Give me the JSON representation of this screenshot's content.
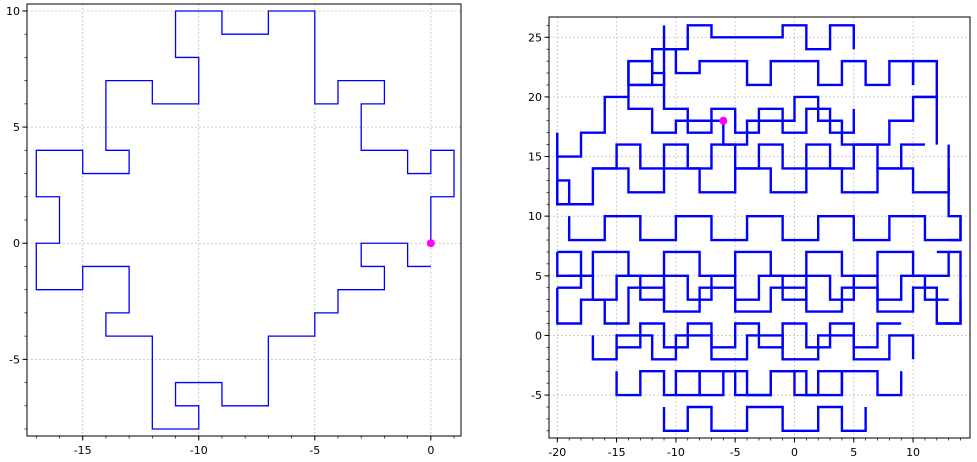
{
  "chart_data": [
    {
      "type": "line",
      "title": "",
      "xlabel": "",
      "ylabel": "",
      "xlim": [
        -17.4,
        1.3
      ],
      "ylim": [
        -8.3,
        10.3
      ],
      "grid": true,
      "xticks": [
        -15,
        -10,
        -5,
        0
      ],
      "yticks": [
        -5,
        0,
        5,
        10
      ],
      "xtick_labels": [
        "-15",
        "-10",
        "-5",
        "0"
      ],
      "ytick_labels": [
        "-5",
        "0",
        "5",
        "10"
      ],
      "line_color": "#0000ff",
      "marker_color": "#ff00ff",
      "series": [
        {
          "x": [
            0,
            0,
            1,
            1,
            0,
            0,
            -1,
            -1,
            -3,
            -3,
            -2,
            -2,
            -4,
            -4,
            -5,
            -5,
            -7,
            -7,
            -9,
            -9,
            -11,
            -11,
            -10,
            -10,
            -12,
            -12,
            -14,
            -14,
            -13,
            -13,
            -15,
            -15,
            -17,
            -17,
            -16,
            -16,
            -17,
            -17,
            -15,
            -15,
            -13,
            -13,
            -14,
            -14,
            -12,
            -12,
            -10,
            -10,
            -11,
            -11,
            -9,
            -9,
            -7,
            -7,
            -5,
            -5,
            -4,
            -4,
            -2,
            -2,
            -3,
            -3,
            -1,
            -1,
            0
          ],
          "y": [
            0,
            2,
            2,
            4,
            4,
            3,
            3,
            4,
            4,
            6,
            6,
            7,
            7,
            6,
            6,
            10,
            10,
            9,
            9,
            10,
            10,
            8,
            8,
            6,
            6,
            7,
            7,
            4,
            4,
            3,
            3,
            4,
            4,
            2,
            2,
            0,
            0,
            -2,
            -2,
            -1,
            -1,
            -3,
            -3,
            -4,
            -4,
            -8,
            -8,
            -7,
            -7,
            -6,
            -6,
            -7,
            -7,
            -4,
            -4,
            -3,
            -3,
            -2,
            -2,
            -1,
            -1,
            0,
            0,
            -1,
            -1
          ]
        }
      ],
      "markers": [
        {
          "x": 0,
          "y": 0
        }
      ]
    },
    {
      "type": "line",
      "title": "",
      "xlabel": "",
      "ylabel": "",
      "xlim": [
        -20.7,
        14.8
      ],
      "ylim": [
        -8.6,
        26.7
      ],
      "grid": true,
      "xticks": [
        -20,
        -15,
        -10,
        -5,
        0,
        5,
        10
      ],
      "yticks": [
        -5,
        0,
        5,
        10,
        15,
        20,
        25
      ],
      "xtick_labels": [
        "-20",
        "-15",
        "-10",
        "-5",
        "0",
        "5",
        "10"
      ],
      "ytick_labels": [
        "-5",
        "0",
        "5",
        "10",
        "15",
        "20",
        "25"
      ],
      "line_color": "#0000ff",
      "marker_color": "#ff00ff",
      "description_series_note": "",
      "series": [
        {
          "x": [
            -11,
            -11,
            -9,
            -9,
            -7,
            -7,
            -1,
            -1,
            1,
            1,
            3,
            3,
            5,
            5
          ],
          "y": [
            26,
            24,
            24,
            26,
            26,
            25,
            25,
            26,
            26,
            24,
            24,
            26,
            26,
            24
          ]
        },
        {
          "x": [
            -14,
            -14,
            -11,
            -11,
            -12,
            -12,
            -10,
            -10,
            -8,
            -8,
            -4,
            -4,
            -2,
            -2,
            2,
            2,
            4,
            4,
            6,
            6,
            8,
            8,
            10,
            10
          ],
          "y": [
            23,
            21,
            21,
            22,
            22,
            24,
            24,
            22,
            22,
            23,
            23,
            21,
            21,
            23,
            23,
            21,
            21,
            23,
            23,
            21,
            21,
            23,
            23,
            21
          ]
        },
        {
          "x": [
            -20,
            -20,
            -18,
            -18,
            -16,
            -16,
            -14,
            -14,
            -12,
            -12,
            -10,
            -10,
            -6,
            -6,
            -4,
            -4,
            0,
            0,
            2,
            2,
            4,
            4,
            8,
            8,
            10,
            10,
            12,
            12
          ],
          "y": [
            17,
            15,
            15,
            17,
            17,
            20,
            20,
            19,
            19,
            17,
            17,
            18,
            18,
            16,
            16,
            18,
            18,
            20,
            20,
            18,
            18,
            16,
            16,
            18,
            18,
            20,
            20,
            16
          ]
        },
        {
          "x": [
            -20,
            -20,
            -17,
            -17,
            -14,
            -14,
            -11,
            -11,
            -8,
            -8,
            -5,
            -5,
            -2,
            -2,
            1,
            1,
            4,
            4,
            7,
            7,
            10,
            10,
            13,
            13
          ],
          "y": [
            13,
            11,
            11,
            14,
            14,
            12,
            12,
            14,
            14,
            12,
            12,
            14,
            14,
            12,
            12,
            14,
            14,
            12,
            12,
            14,
            14,
            12,
            12,
            14
          ]
        },
        {
          "x": [
            -19,
            -19,
            -16,
            -16,
            -13,
            -13,
            -10,
            -10,
            -7,
            -7,
            -4,
            -4,
            -1,
            -1,
            2,
            2,
            5,
            5,
            8,
            8,
            11,
            11,
            14,
            14
          ],
          "y": [
            10,
            8,
            8,
            10,
            10,
            8,
            8,
            10,
            10,
            8,
            8,
            10,
            10,
            8,
            8,
            10,
            10,
            8,
            8,
            10,
            10,
            8,
            8,
            10
          ]
        },
        {
          "x": [
            -20,
            -20,
            -17,
            -17,
            -14,
            -14,
            -11,
            -11,
            -8,
            -8,
            -5,
            -5,
            -2,
            -2,
            1,
            1,
            4,
            4,
            7,
            7,
            10,
            10,
            13,
            13
          ],
          "y": [
            7,
            5,
            5,
            7,
            7,
            5,
            5,
            7,
            7,
            5,
            5,
            7,
            7,
            5,
            5,
            7,
            7,
            5,
            5,
            7,
            7,
            5,
            5,
            7
          ]
        },
        {
          "x": [
            -20,
            -20,
            -18,
            -18,
            -16,
            -16,
            -14,
            -14,
            -11,
            -11,
            -8,
            -8,
            -5,
            -5,
            -2,
            -2,
            1,
            1,
            4,
            4,
            7,
            7,
            10,
            10,
            12,
            12,
            14,
            14
          ],
          "y": [
            4,
            1,
            1,
            3,
            3,
            1,
            1,
            4,
            4,
            2,
            2,
            4,
            4,
            2,
            2,
            4,
            4,
            2,
            2,
            4,
            4,
            2,
            2,
            4,
            4,
            1,
            1,
            3
          ]
        },
        {
          "x": [
            -17,
            -17,
            -15,
            -15,
            -12,
            -12,
            -10,
            -10,
            -7,
            -7,
            -4,
            -4,
            -1,
            -1,
            2,
            2,
            5,
            5,
            8,
            8,
            10,
            10
          ],
          "y": [
            0,
            -2,
            -2,
            0,
            0,
            -2,
            -2,
            0,
            0,
            -2,
            -2,
            0,
            0,
            -2,
            -2,
            0,
            0,
            -2,
            -2,
            0,
            0,
            -2
          ]
        },
        {
          "x": [
            -15,
            -15,
            -13,
            -13,
            -11,
            -11,
            -8,
            -8,
            -5,
            -5,
            -2,
            -2,
            1,
            1,
            4,
            4,
            7,
            7,
            9,
            9
          ],
          "y": [
            -3,
            -5,
            -5,
            -3,
            -3,
            -5,
            -5,
            -3,
            -3,
            -5,
            -5,
            -3,
            -3,
            -5,
            -5,
            -3,
            -3,
            -5,
            -5,
            -3
          ]
        },
        {
          "x": [
            -11,
            -11,
            -9,
            -9,
            -7,
            -7,
            -4,
            -4,
            -1,
            -1,
            2,
            2,
            4,
            4,
            6,
            6
          ],
          "y": [
            -6,
            -8,
            -8,
            -6,
            -6,
            -8,
            -8,
            -6,
            -6,
            -8,
            -8,
            -6,
            -6,
            -8,
            -8,
            -6
          ]
        },
        {
          "x": [
            -11,
            -11,
            -9,
            -9,
            -7,
            -7,
            -5,
            -5,
            -3,
            -3,
            -1,
            -1,
            1,
            1,
            3,
            3,
            5,
            5
          ],
          "y": [
            24,
            19,
            19,
            17,
            17,
            19,
            19,
            17,
            17,
            19,
            19,
            17,
            17,
            19,
            19,
            17,
            17,
            19
          ]
        },
        {
          "x": [
            -17,
            -15,
            -15,
            -13,
            -13,
            -11,
            -11,
            -9,
            -9,
            -7,
            -7,
            -5,
            -5,
            -3,
            -3,
            -1,
            -1,
            1,
            1,
            3,
            3,
            5,
            5,
            7,
            7,
            9,
            9,
            11
          ],
          "y": [
            14,
            14,
            16,
            16,
            14,
            14,
            16,
            16,
            14,
            14,
            16,
            16,
            14,
            14,
            16,
            16,
            14,
            14,
            16,
            16,
            14,
            14,
            16,
            16,
            14,
            14,
            16,
            16
          ]
        },
        {
          "x": [
            -19,
            -17,
            -17,
            -15,
            -15,
            -13,
            -13,
            -11,
            -11,
            -9,
            -9,
            -7,
            -7,
            -5,
            -5,
            -3,
            -3,
            -1,
            -1,
            1,
            1,
            3,
            3,
            5,
            5,
            7,
            7,
            9,
            9,
            11,
            11,
            13
          ],
          "y": [
            5,
            5,
            3,
            3,
            5,
            5,
            3,
            3,
            5,
            5,
            3,
            3,
            5,
            5,
            3,
            3,
            5,
            5,
            3,
            3,
            5,
            5,
            3,
            3,
            5,
            5,
            3,
            3,
            5,
            5,
            3,
            3
          ]
        },
        {
          "x": [
            -15,
            -13,
            -13,
            -11,
            -11,
            -9,
            -9,
            -7,
            -7,
            -5,
            -5,
            -3,
            -3,
            -1,
            -1,
            1,
            1,
            3,
            3,
            5,
            5,
            7,
            7,
            9
          ],
          "y": [
            -1,
            -1,
            1,
            1,
            -1,
            -1,
            1,
            1,
            -1,
            -1,
            1,
            1,
            -1,
            -1,
            1,
            1,
            -1,
            -1,
            1,
            1,
            -1,
            -1,
            1,
            1
          ]
        },
        {
          "x": [
            -10,
            -10,
            -8,
            -8,
            -6,
            -6,
            -4,
            -4,
            -2,
            -2,
            0,
            0,
            2,
            2,
            4,
            4
          ],
          "y": [
            -5,
            -3,
            -3,
            -5,
            -5,
            -3,
            -3,
            -5,
            -5,
            -3,
            -3,
            -5,
            -5,
            -3,
            -3,
            -5
          ]
        },
        {
          "x": [
            -20,
            -20,
            -19,
            -19,
            -20
          ],
          "y": [
            17,
            11,
            11,
            13,
            13
          ]
        },
        {
          "x": [
            13,
            13,
            14,
            14,
            13
          ],
          "y": [
            16,
            10,
            10,
            8,
            8
          ]
        },
        {
          "x": [
            -14,
            -14,
            -12,
            -12,
            -14
          ],
          "y": [
            20,
            23,
            23,
            21,
            21
          ]
        },
        {
          "x": [
            10,
            10,
            12,
            12,
            10
          ],
          "y": [
            21,
            23,
            23,
            20,
            20
          ]
        },
        {
          "x": [
            -20,
            -18,
            -18,
            -20
          ],
          "y": [
            4,
            4,
            7,
            7
          ]
        },
        {
          "x": [
            12,
            14,
            14,
            12
          ],
          "y": [
            1,
            1,
            7,
            7
          ]
        }
      ],
      "markers": [
        {
          "x": -6,
          "y": 18
        }
      ]
    }
  ]
}
